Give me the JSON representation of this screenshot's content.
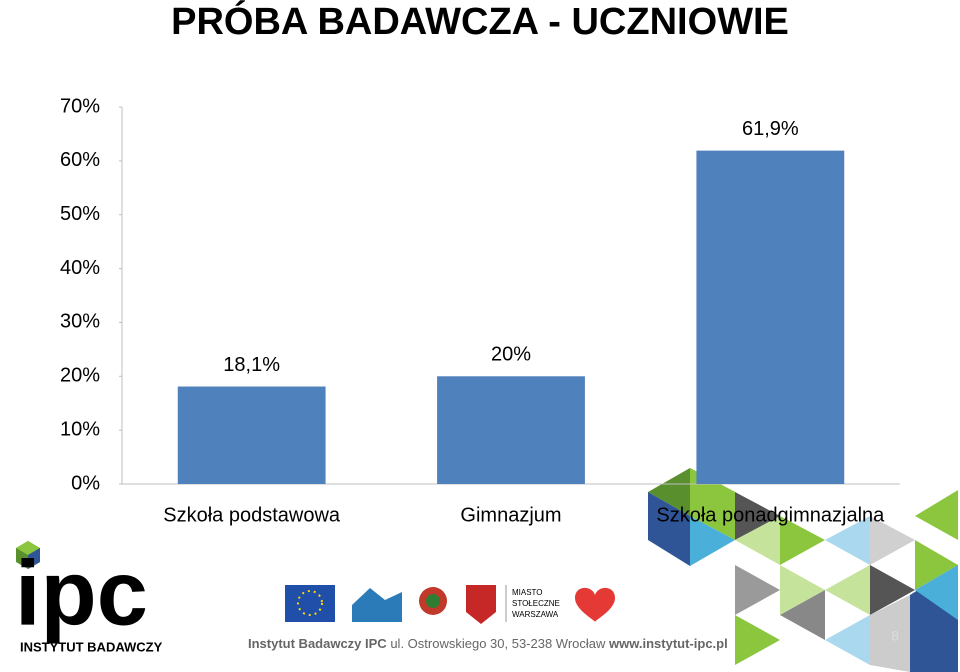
{
  "chart_data": {
    "type": "bar",
    "title": "PRÓBA BADAWCZA - UCZNIOWIE",
    "categories": [
      "Szkoła podstawowa",
      "Gimnazjum",
      "Szkoła ponadgimnazjalna"
    ],
    "values": [
      18.1,
      20,
      61.9
    ],
    "value_labels": [
      "18,1%",
      "20%",
      "61,9%"
    ],
    "color": "#4f81bd",
    "ylim": [
      0,
      70
    ],
    "yticks": [
      {
        "value": 0,
        "label": "0%"
      },
      {
        "value": 10,
        "label": "10%"
      },
      {
        "value": 20,
        "label": "20%"
      },
      {
        "value": 30,
        "label": "30%"
      },
      {
        "value": 40,
        "label": "40%"
      },
      {
        "value": 50,
        "label": "50%"
      },
      {
        "value": 60,
        "label": "60%"
      },
      {
        "value": 70,
        "label": "70%"
      }
    ],
    "grid": false
  },
  "footer": {
    "logo": "ipc",
    "logo_caption": "INSTYTUT BADAWCZY",
    "institute": "Instytut Badawczy IPC",
    "address": "ul. Ostrowskiego 30, 53-238 Wrocław",
    "website": "www.instytut-ipc.pl",
    "partner_lines": [
      "MIASTO",
      "STOŁECZNE",
      "WARSZAWA"
    ],
    "page_number": "8"
  }
}
